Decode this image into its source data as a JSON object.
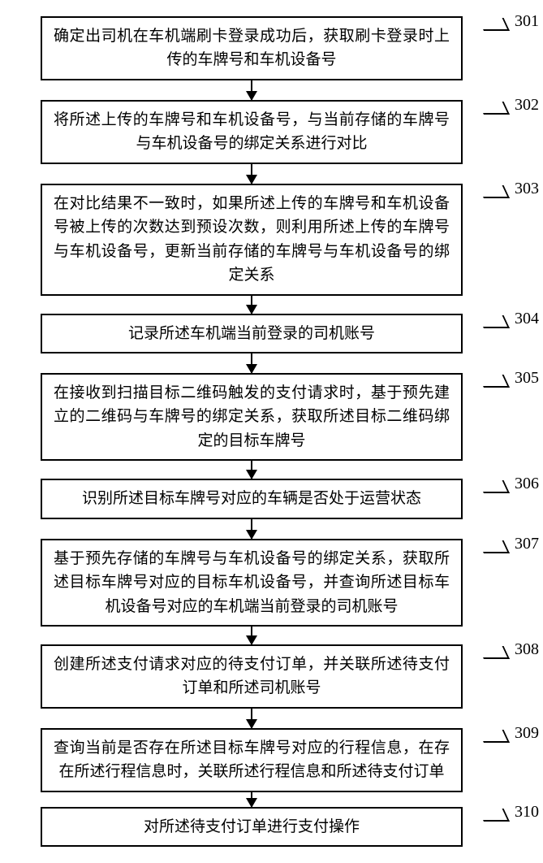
{
  "flow": {
    "box_border_color": "#000000",
    "background_color": "#ffffff",
    "font_size_box": 19,
    "font_size_label": 20,
    "arrow_heights": [
      24,
      24,
      22,
      24,
      22,
      24,
      22,
      24,
      18
    ],
    "steps": [
      {
        "num": "301",
        "text": "确定出司机在车机端刷卡登录成功后，获取刷卡登录时上传的车牌号和车机设备号"
      },
      {
        "num": "302",
        "text": "将所述上传的车牌号和车机设备号，与当前存储的车牌号与车机设备号的绑定关系进行对比"
      },
      {
        "num": "303",
        "text": "在对比结果不一致时，如果所述上传的车牌号和车机设备号被上传的次数达到预设次数，则利用所述上传的车牌号与车机设备号，更新当前存储的车牌号与车机设备号的绑定关系"
      },
      {
        "num": "304",
        "text": "记录所述车机端当前登录的司机账号"
      },
      {
        "num": "305",
        "text": "在接收到扫描目标二维码触发的支付请求时，基于预先建立的二维码与车牌号的绑定关系，获取所述目标二维码绑定的目标车牌号"
      },
      {
        "num": "306",
        "text": "识别所述目标车牌号对应的车辆是否处于运营状态"
      },
      {
        "num": "307",
        "text": "基于预先存储的车牌号与车机设备号的绑定关系，获取所述目标车牌号对应的目标车机设备号，并查询所述目标车机设备号对应的车机端当前登录的司机账号"
      },
      {
        "num": "308",
        "text": "创建所述支付请求对应的待支付订单，并关联所述待支付订单和所述司机账号"
      },
      {
        "num": "309",
        "text": "查询当前是否存在所述目标车牌号对应的行程信息，在存在所述行程信息时，关联所述行程信息和所述待支付订单"
      },
      {
        "num": "310",
        "text": "对所述待支付订单进行支付操作"
      }
    ]
  }
}
